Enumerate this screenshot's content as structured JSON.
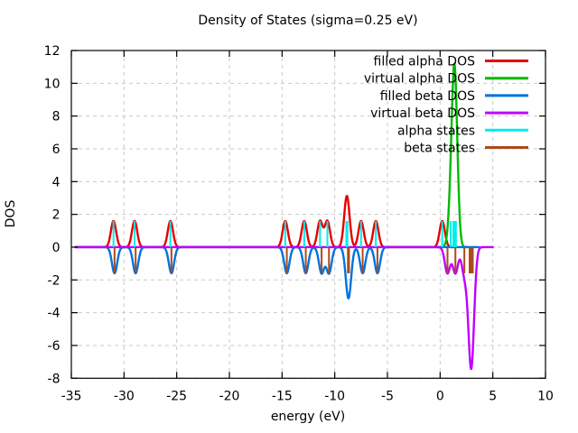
{
  "title": "Density of States (sigma=0.25 eV)",
  "chart_data": {
    "type": "line",
    "title": "Density of States (sigma=0.25 eV)",
    "xlabel": "energy (eV)",
    "ylabel": "DOS",
    "xlim": [
      -35,
      10
    ],
    "ylim": [
      -8,
      12
    ],
    "xticks": [
      -35,
      -30,
      -25,
      -20,
      -15,
      -10,
      -5,
      0,
      5,
      10
    ],
    "yticks": [
      12,
      10,
      8,
      6,
      4,
      2,
      0,
      -2,
      -4,
      -6,
      -8
    ],
    "grid": true,
    "grid_color": "#c9c9c9",
    "border_color": "#000000",
    "sigma": 0.25,
    "legend_position": "top-right-inside",
    "series": [
      {
        "name": "filled alpha DOS",
        "color": "#e60000",
        "style": "gaussian-broadened-curve",
        "sign": 1,
        "domain": [
          -34.6,
          1.4
        ],
        "states": [
          -31.0,
          -29.0,
          -25.6,
          -14.7,
          -12.9,
          -11.4,
          -10.7,
          -8.9,
          -8.8,
          -7.5,
          -6.1,
          0.2
        ],
        "peak_heights_approx": [
          1.7,
          1.7,
          1.7,
          1.6,
          1.6,
          1.6,
          1.6,
          3.4,
          3.4,
          1.6,
          1.6,
          1.6
        ]
      },
      {
        "name": "virtual alpha DOS",
        "color": "#00bb00",
        "style": "gaussian-broadened-curve",
        "sign": 1,
        "domain": [
          -0.2,
          2.6
        ],
        "states": [
          1.0,
          1.25,
          1.3,
          1.35,
          1.35,
          1.4,
          1.45,
          1.5
        ],
        "peak_heights_approx": [
          11.0
        ]
      },
      {
        "name": "filled beta DOS",
        "color": "#0073de",
        "style": "gaussian-broadened-curve",
        "sign": -1,
        "domain": [
          -34.6,
          3.7
        ],
        "states": [
          -30.9,
          -28.9,
          -25.5,
          -14.55,
          -12.75,
          -11.25,
          -10.55,
          -8.75,
          -8.65,
          -7.35,
          -5.95
        ],
        "peak_heights_approx": [
          -1.6,
          -1.6,
          -1.6,
          -1.6,
          -1.6,
          -1.6,
          -1.6,
          -3.3,
          -3.3,
          -1.6,
          -1.6
        ]
      },
      {
        "name": "virtual beta DOS",
        "color": "#bf00ff",
        "style": "gaussian-broadened-curve",
        "sign": -1,
        "domain": [
          -34.6,
          5.0
        ],
        "states": [
          0.7,
          1.45,
          2.3,
          2.8,
          2.9,
          2.95,
          3.0,
          3.1
        ],
        "peak_heights_approx": [
          -1.6,
          -1.6,
          -2.0,
          -7.3
        ]
      },
      {
        "name": "alpha states",
        "color": "#00eeee",
        "style": "impulses",
        "sign": 1,
        "height": 1.5958,
        "states": [
          -31.0,
          -29.0,
          -25.6,
          -14.7,
          -12.9,
          -11.4,
          -10.7,
          -8.9,
          -8.8,
          -7.5,
          -6.1,
          0.2,
          1.0,
          1.25,
          1.3,
          1.35,
          1.4,
          1.45,
          1.5
        ]
      },
      {
        "name": "beta states",
        "color": "#ad4a1a",
        "style": "impulses",
        "sign": -1,
        "height": 1.5958,
        "states": [
          -30.9,
          -28.9,
          -25.5,
          -14.55,
          -12.75,
          -11.25,
          -10.55,
          -8.75,
          -8.65,
          -7.35,
          -5.95,
          0.7,
          1.45,
          2.3,
          2.8,
          2.9,
          2.95,
          3.0,
          3.1
        ]
      }
    ]
  }
}
